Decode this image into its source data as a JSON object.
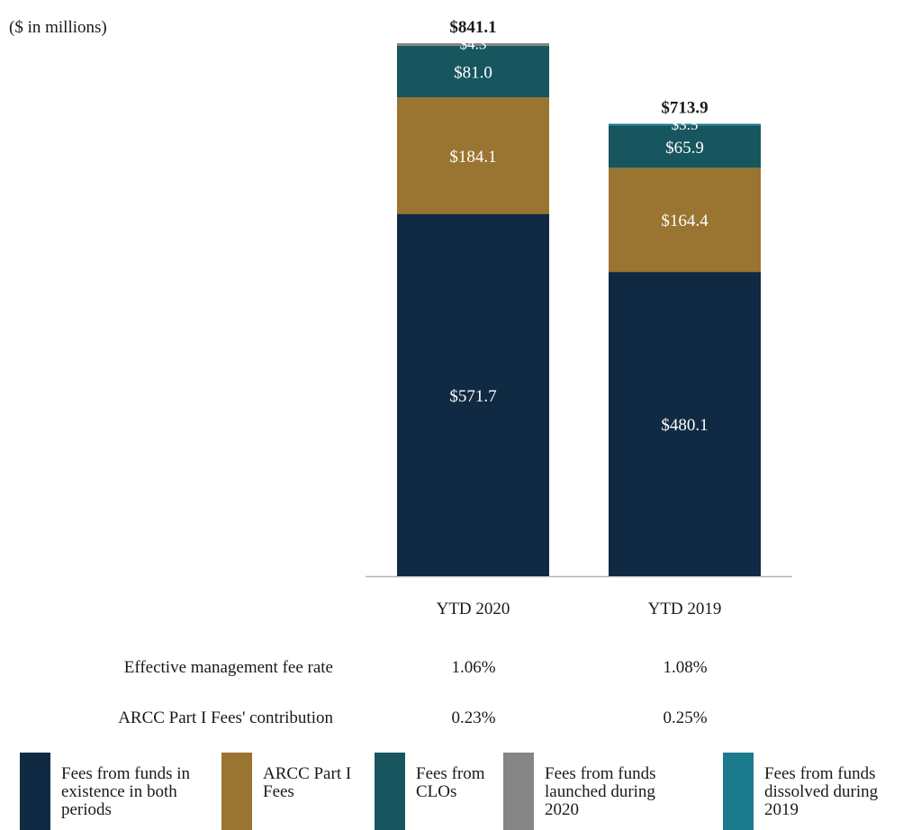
{
  "units_note": "($ in millions)",
  "chart_data": {
    "type": "bar",
    "stacked": true,
    "categories": [
      "YTD 2020",
      "YTD 2019"
    ],
    "totals": [
      841.1,
      713.9
    ],
    "total_labels": [
      "$841.1",
      "$713.9"
    ],
    "ylim": [
      0,
      841.1
    ],
    "grid": false,
    "legend_position": "bottom",
    "series": [
      {
        "name": "Fees from funds in existence in both periods",
        "color": "#0f2a42",
        "values": [
          571.7,
          480.1
        ],
        "labels": [
          "$571.7",
          "$480.1"
        ]
      },
      {
        "name": "ARCC Part I Fees",
        "color": "#9a7431",
        "values": [
          184.1,
          164.4
        ],
        "labels": [
          "$184.1",
          "$164.4"
        ]
      },
      {
        "name": "Fees from CLOs",
        "color": "#17555f",
        "values": [
          81.0,
          65.9
        ],
        "labels": [
          "$81.0",
          "$65.9"
        ]
      },
      {
        "name": "Fees from funds launched during 2020",
        "color": "#858585",
        "values": [
          4.3,
          0
        ],
        "labels": [
          "$4.3",
          ""
        ]
      },
      {
        "name": "Fees from funds dissolved during 2019",
        "color": "#1b7a8c",
        "values": [
          0,
          3.5
        ],
        "labels": [
          "",
          "$3.5"
        ]
      }
    ]
  },
  "metrics": [
    {
      "label": "Effective management fee rate",
      "values": [
        "1.06%",
        "1.08%"
      ]
    },
    {
      "label": "ARCC Part I Fees' contribution",
      "values": [
        "0.23%",
        "0.25%"
      ]
    }
  ],
  "legend": [
    {
      "text": "Fees from funds in existence in both periods",
      "color": "#0f2a42"
    },
    {
      "text": "ARCC Part I Fees",
      "color": "#9a7431"
    },
    {
      "text": "Fees from CLOs",
      "color": "#17555f"
    },
    {
      "text": "Fees from funds launched during 2020",
      "color": "#858585"
    },
    {
      "text": "Fees from funds dissolved during 2019",
      "color": "#1b7a8c"
    }
  ]
}
